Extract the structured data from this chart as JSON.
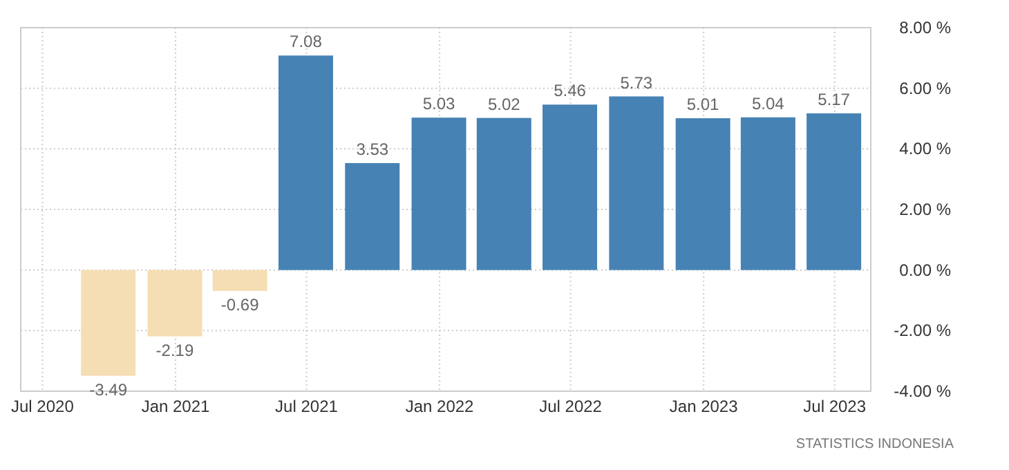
{
  "chart_data": {
    "type": "bar",
    "x": [
      "2020-09-30",
      "2020-12-31",
      "2021-03-31",
      "2021-06-30",
      "2021-09-30",
      "2021-12-31",
      "2022-03-31",
      "2022-06-30",
      "2022-09-30",
      "2022-12-31",
      "2023-03-31",
      "2023-06-30"
    ],
    "values": [
      -3.49,
      -2.19,
      -0.69,
      7.08,
      3.53,
      5.03,
      5.02,
      5.46,
      5.73,
      5.01,
      5.04,
      5.17
    ],
    "colors": [
      "#f5deb3",
      "#f5deb3",
      "#f5deb3",
      "#4682b4",
      "#4682b4",
      "#4682b4",
      "#4682b4",
      "#4682b4",
      "#4682b4",
      "#4682b4",
      "#4682b4",
      "#4682b4"
    ],
    "data_labels": true,
    "xlim": [
      "2020-06-01",
      "2023-08-20"
    ],
    "xticks": [
      {
        "value": "2020-07-01",
        "label": "Jul 2020"
      },
      {
        "value": "2021-01-01",
        "label": "Jan 2021"
      },
      {
        "value": "2021-07-01",
        "label": "Jul 2021"
      },
      {
        "value": "2022-01-01",
        "label": "Jan 2022"
      },
      {
        "value": "2022-07-01",
        "label": "Jul 2022"
      },
      {
        "value": "2023-01-01",
        "label": "Jan 2023"
      },
      {
        "value": "2023-07-01",
        "label": "Jul 2023"
      }
    ],
    "ylim": [
      -4,
      8
    ],
    "yticks": [
      {
        "value": -4,
        "label": "-4.00 %"
      },
      {
        "value": -2,
        "label": "-2.00 %"
      },
      {
        "value": 0,
        "label": "0.00 %"
      },
      {
        "value": 2,
        "label": "2.00 %"
      },
      {
        "value": 4,
        "label": "4.00 %"
      },
      {
        "value": 6,
        "label": "6.00 %"
      },
      {
        "value": 8,
        "label": "8.00 %"
      }
    ],
    "grid": true,
    "annotations": [
      "STATISTICS INDONESIA"
    ]
  }
}
